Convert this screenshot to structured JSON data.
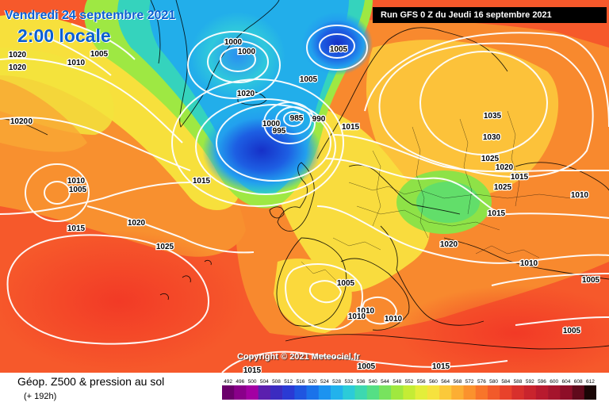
{
  "map_header": {
    "date_label": "Vendredi 24 septembre 2021",
    "time_label": "2:00 locale",
    "run_label": "Run GFS 0 Z du Jeudi 16 septembre 2021"
  },
  "copyright": "Copyright © 2021 Meteociel.fr",
  "footer": {
    "title": "Géop. Z500 & pression au sol",
    "subtitle": "(+ 192h)"
  },
  "color_scale": {
    "values": [
      "492",
      "496",
      "500",
      "504",
      "508",
      "512",
      "516",
      "520",
      "524",
      "528",
      "532",
      "536",
      "540",
      "544",
      "548",
      "552",
      "556",
      "560",
      "564",
      "568",
      "572",
      "576",
      "580",
      "584",
      "588",
      "592",
      "596",
      "600",
      "604",
      "608",
      "612"
    ],
    "colors": [
      "#6b006b",
      "#8a008a",
      "#a300a3",
      "#5b1fae",
      "#3b2bc0",
      "#2a3ad4",
      "#1f55e0",
      "#1a72ea",
      "#1c93f0",
      "#22b2ec",
      "#2ccbd8",
      "#3dd8b0",
      "#55df85",
      "#78e35e",
      "#a0e83f",
      "#c4ec35",
      "#e3ee3a",
      "#f6e23e",
      "#fbc93a",
      "#fcae33",
      "#fb922d",
      "#f8752a",
      "#f25a2a",
      "#e8422b",
      "#d8302c",
      "#c9242d",
      "#b81a2e",
      "#a5142c",
      "#8e0e28",
      "#600a1c",
      "#1a0606"
    ]
  },
  "isobar_labels": [
    {
      "text": "1020"
    },
    {
      "text": "1020"
    },
    {
      "text": "1010"
    },
    {
      "text": "1005"
    },
    {
      "text": "1020"
    },
    {
      "text": "1025"
    },
    {
      "text": "1015"
    },
    {
      "text": "1010"
    },
    {
      "text": "1020"
    },
    {
      "text": "1005"
    },
    {
      "text": "1000"
    },
    {
      "text": "1000"
    },
    {
      "text": "1005"
    },
    {
      "text": "1020"
    },
    {
      "text": "1000"
    },
    {
      "text": "995"
    },
    {
      "text": "985"
    },
    {
      "text": "990"
    },
    {
      "text": "1015"
    },
    {
      "text": "1010"
    },
    {
      "text": "1005"
    },
    {
      "text": "1015"
    },
    {
      "text": "1020"
    },
    {
      "text": "1025"
    },
    {
      "text": "1035"
    },
    {
      "text": "1030"
    },
    {
      "text": "1025"
    },
    {
      "text": "1020"
    },
    {
      "text": "1015"
    },
    {
      "text": "1010"
    },
    {
      "text": "1015"
    },
    {
      "text": "1020"
    },
    {
      "text": "1010"
    },
    {
      "text": "1005"
    },
    {
      "text": "1005"
    },
    {
      "text": "1010"
    },
    {
      "text": "1010"
    },
    {
      "text": "1005"
    },
    {
      "text": "1015"
    },
    {
      "text": "1015"
    },
    {
      "text": "1005"
    }
  ]
}
